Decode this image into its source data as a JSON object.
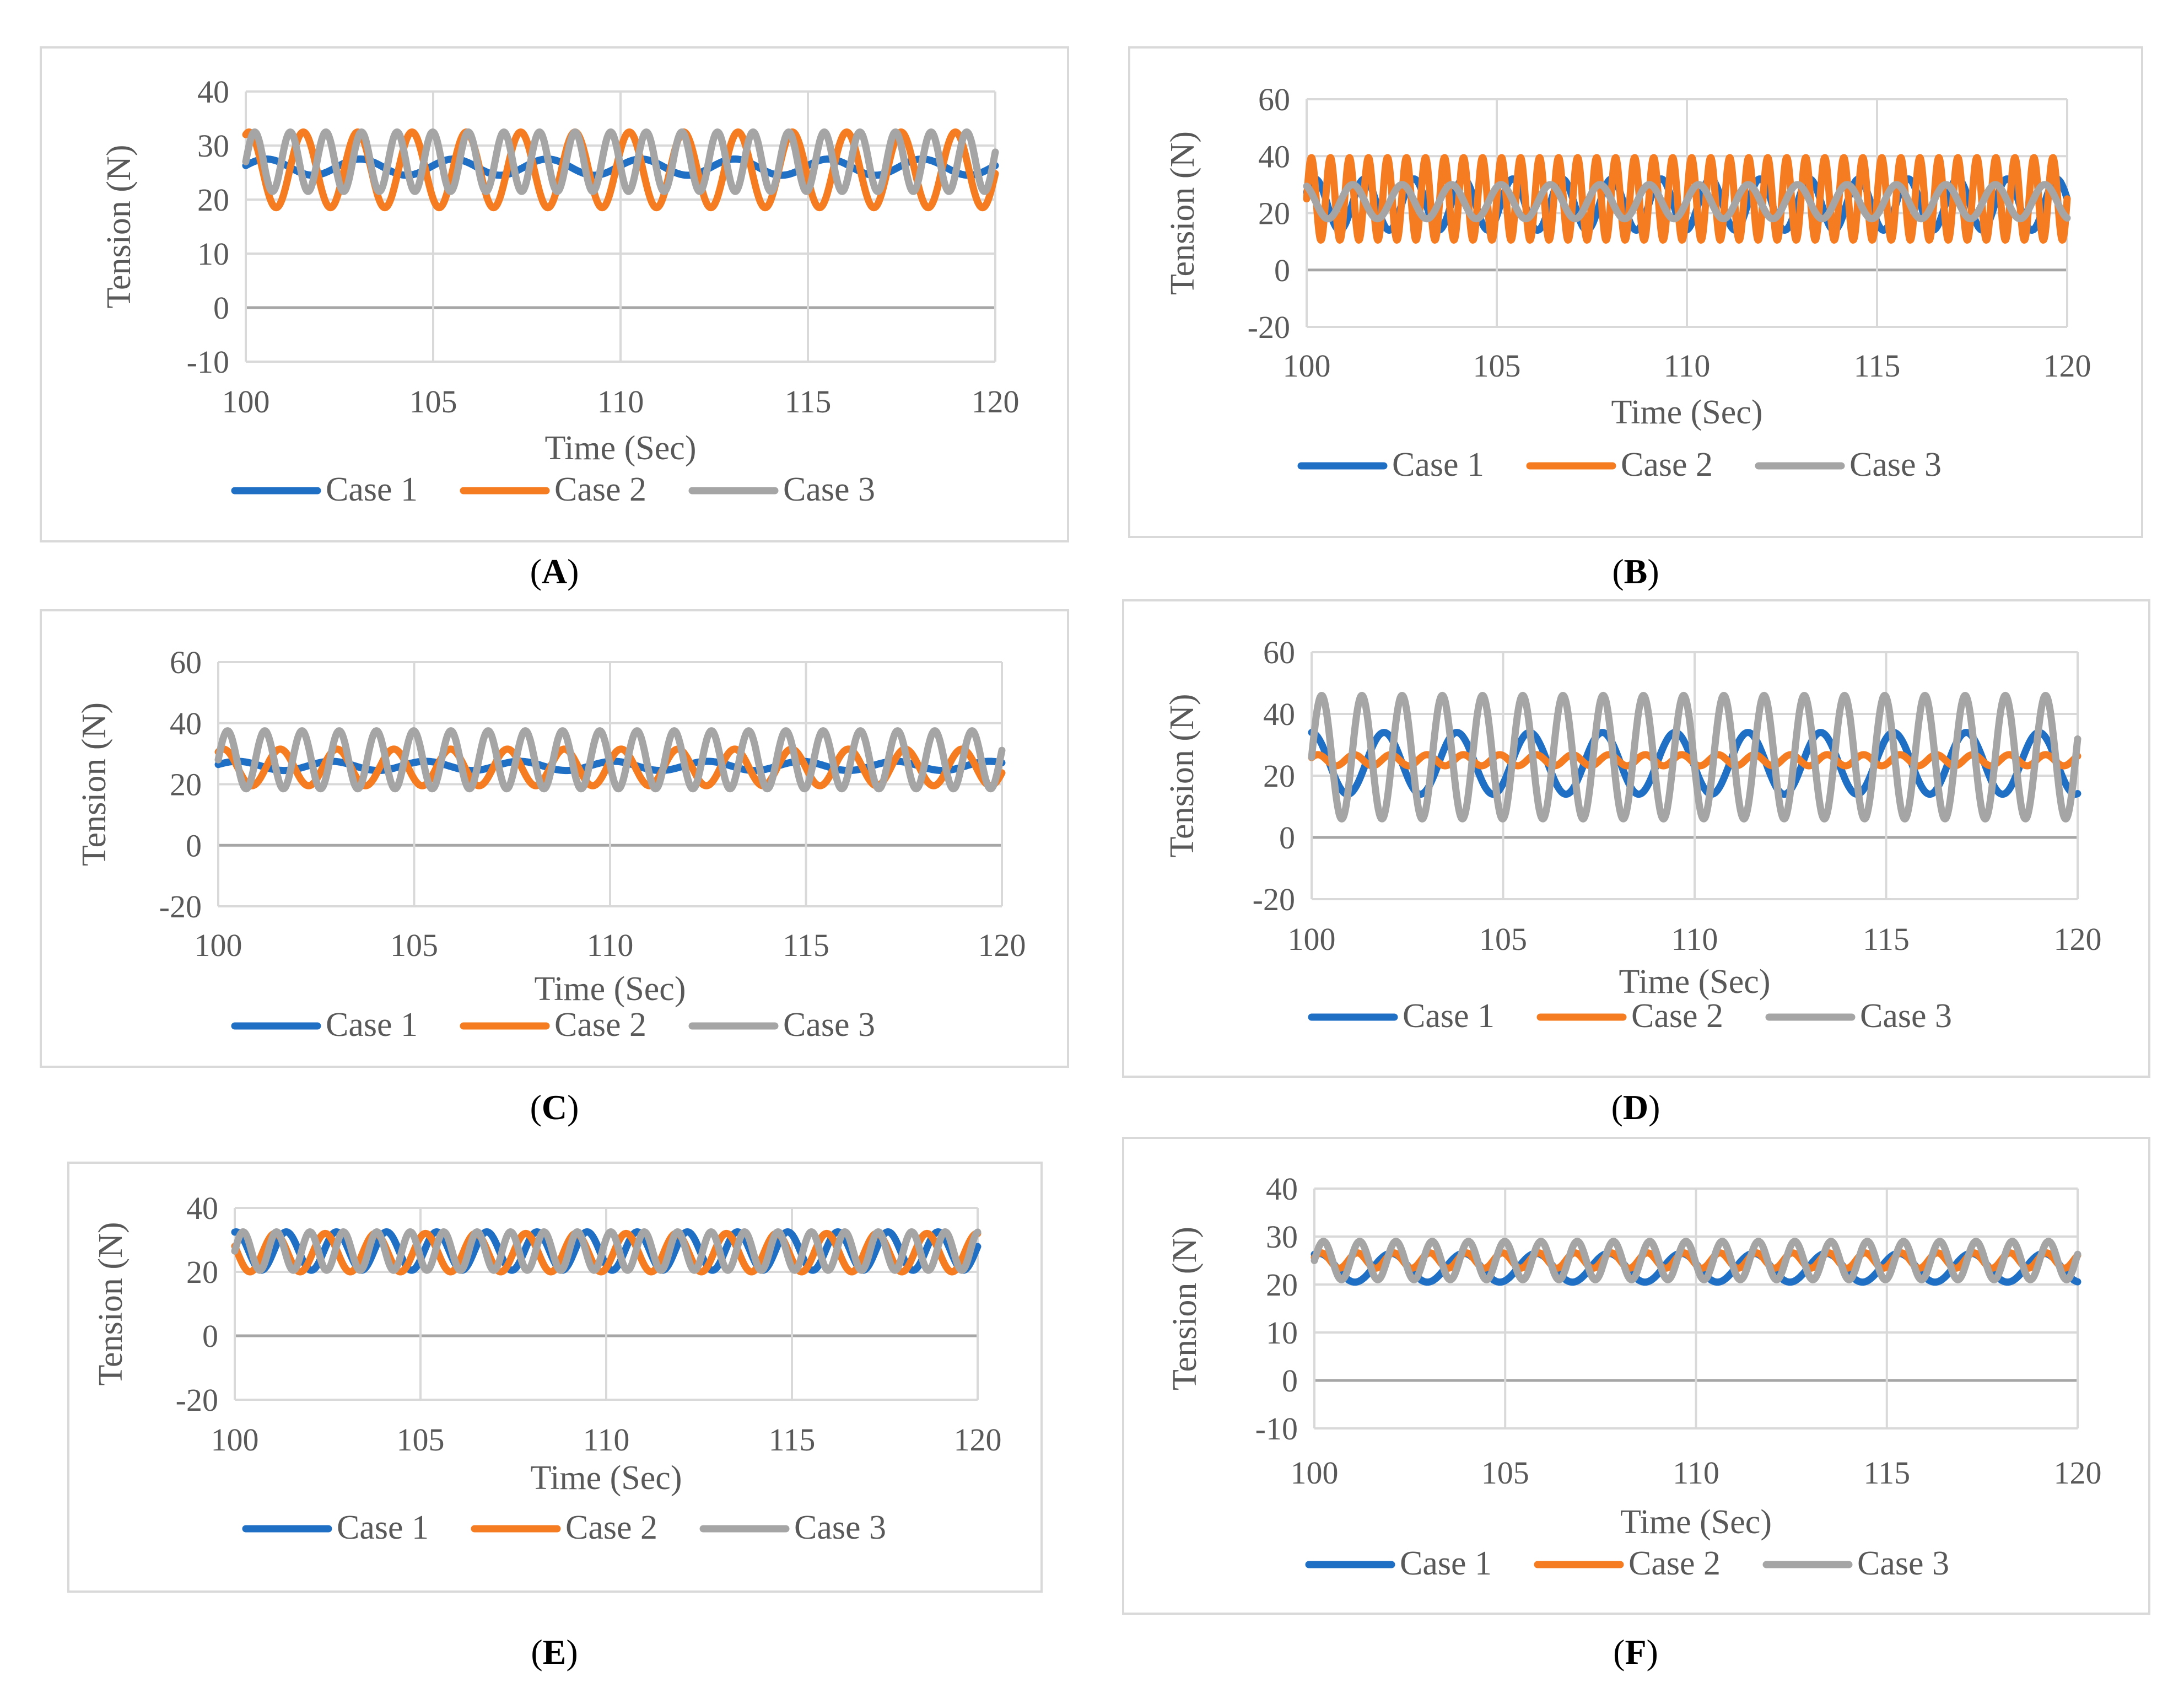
{
  "figure": {
    "panels": [
      {
        "id": "A",
        "caption_letter": "A",
        "ylabel": "Tension (N)",
        "xlabel": "Time (Sec)"
      },
      {
        "id": "B",
        "caption_letter": "B",
        "ylabel": "Tension (N)",
        "xlabel": "Time (Sec)"
      },
      {
        "id": "C",
        "caption_letter": "C",
        "ylabel": "Tension (N)",
        "xlabel": "Time (Sec)"
      },
      {
        "id": "D",
        "caption_letter": "D",
        "ylabel": "Tension (N)",
        "xlabel": "Time (Sec)"
      },
      {
        "id": "E",
        "caption_letter": "E",
        "ylabel": "Tension (N)",
        "xlabel": "Time (Sec)"
      },
      {
        "id": "F",
        "caption_letter": "F",
        "ylabel": "Tension (N)",
        "xlabel": "Time (Sec)"
      }
    ]
  },
  "colors": {
    "case1": "#1f6fc5",
    "case2": "#f57c20",
    "case3": "#a5a5a5",
    "grid": "#d9d9d9",
    "zero": "#a6a6a6"
  },
  "chart_data": [
    {
      "panel": "A",
      "type": "line",
      "xlabel": "Time (Sec)",
      "ylabel": "Tension (N)",
      "xlim": [
        100,
        120
      ],
      "ylim": [
        -10,
        40
      ],
      "xticks": [
        "100",
        "105",
        "110",
        "115",
        "120"
      ],
      "yticks": [
        "-10",
        "0",
        "10",
        "20",
        "30",
        "40"
      ],
      "legend": [
        "Case 1",
        "Case 2",
        "Case 3"
      ],
      "series": [
        {
          "name": "Case 1",
          "mean": 26,
          "amplitude": 1.5,
          "period_s": 2.5,
          "phase": 0.2
        },
        {
          "name": "Case 2",
          "mean": 25.5,
          "amplitude": 7,
          "period_s": 1.45,
          "phase": 1.2
        },
        {
          "name": "Case 3",
          "mean": 27,
          "amplitude": 5.5,
          "period_s": 0.95,
          "phase": 0.0
        }
      ]
    },
    {
      "panel": "B",
      "type": "line",
      "xlabel": "Time (Sec)",
      "ylabel": "Tension (N)",
      "xlim": [
        100,
        120
      ],
      "ylim": [
        -20,
        60
      ],
      "xticks": [
        "100",
        "105",
        "110",
        "115",
        "120"
      ],
      "yticks": [
        "-20",
        "0",
        "20",
        "40",
        "60"
      ],
      "legend": [
        "Case 1",
        "Case 2",
        "Case 3"
      ],
      "series": [
        {
          "name": "Case 1",
          "mean": 23,
          "amplitude": 9,
          "period_s": 1.3,
          "phase": 0.5
        },
        {
          "name": "Case 2",
          "mean": 25,
          "amplitude": 14.5,
          "period_s": 0.5,
          "phase": 0.0
        },
        {
          "name": "Case 3",
          "mean": 24,
          "amplitude": 6,
          "period_s": 1.3,
          "phase": 2.0
        }
      ]
    },
    {
      "panel": "C",
      "type": "line",
      "xlabel": "Time (Sec)",
      "ylabel": "Tension (N)",
      "xlim": [
        100,
        120
      ],
      "ylim": [
        -20,
        60
      ],
      "xticks": [
        "100",
        "105",
        "110",
        "115",
        "120"
      ],
      "yticks": [
        "-20",
        "0",
        "20",
        "40",
        "60"
      ],
      "legend": [
        "Case 1",
        "Case 2",
        "Case 3"
      ],
      "series": [
        {
          "name": "Case 1",
          "mean": 26,
          "amplitude": 1.5,
          "period_s": 2.4,
          "phase": 0.3
        },
        {
          "name": "Case 2",
          "mean": 25.5,
          "amplitude": 6,
          "period_s": 1.45,
          "phase": 1.0
        },
        {
          "name": "Case 3",
          "mean": 28,
          "amplitude": 9.5,
          "period_s": 0.95,
          "phase": 0.0
        }
      ]
    },
    {
      "panel": "D",
      "type": "line",
      "xlabel": "Time (Sec)",
      "ylabel": "Tension (N)",
      "xlim": [
        100,
        120
      ],
      "ylim": [
        -20,
        60
      ],
      "xticks": [
        "100",
        "105",
        "110",
        "115",
        "120"
      ],
      "yticks": [
        "-20",
        "0",
        "20",
        "40",
        "60"
      ],
      "legend": [
        "Case 1",
        "Case 2",
        "Case 3"
      ],
      "series": [
        {
          "name": "Case 1",
          "mean": 24,
          "amplitude": 10,
          "period_s": 1.9,
          "phase": 1.6
        },
        {
          "name": "Case 2",
          "mean": 25,
          "amplitude": 1.8,
          "period_s": 0.95,
          "phase": 0.5
        },
        {
          "name": "Case 3",
          "mean": 26,
          "amplitude": 20,
          "period_s": 1.05,
          "phase": 0.0
        }
      ]
    },
    {
      "panel": "E",
      "type": "line",
      "xlabel": "Time (Sec)",
      "ylabel": "Tension (N)",
      "xlim": [
        100,
        120
      ],
      "ylim": [
        -20,
        40
      ],
      "xticks": [
        "100",
        "105",
        "110",
        "115",
        "120"
      ],
      "yticks": [
        "-20",
        "0",
        "20",
        "40"
      ],
      "legend": [
        "Case 1",
        "Case 2",
        "Case 3"
      ],
      "series": [
        {
          "name": "Case 1",
          "mean": 26.5,
          "amplitude": 6,
          "period_s": 1.35,
          "phase": 1.4
        },
        {
          "name": "Case 2",
          "mean": 26,
          "amplitude": 6,
          "period_s": 1.35,
          "phase": 2.8
        },
        {
          "name": "Case 3",
          "mean": 26.5,
          "amplitude": 6,
          "period_s": 0.9,
          "phase": 0.0
        }
      ]
    },
    {
      "panel": "F",
      "type": "line",
      "xlabel": "Time (Sec)",
      "ylabel": "Tension (N)",
      "xlim": [
        100,
        120
      ],
      "ylim": [
        -10,
        40
      ],
      "xticks": [
        "100",
        "105",
        "110",
        "115",
        "120"
      ],
      "yticks": [
        "-10",
        "0",
        "10",
        "20",
        "30",
        "40"
      ],
      "legend": [
        "Case 1",
        "Case 2",
        "Case 3"
      ],
      "series": [
        {
          "name": "Case 1",
          "mean": 23.5,
          "amplitude": 3,
          "period_s": 1.9,
          "phase": 1.2
        },
        {
          "name": "Case 2",
          "mean": 25,
          "amplitude": 1.6,
          "period_s": 0.95,
          "phase": 0.4
        },
        {
          "name": "Case 3",
          "mean": 25,
          "amplitude": 4,
          "period_s": 0.95,
          "phase": 0.0
        }
      ]
    }
  ]
}
